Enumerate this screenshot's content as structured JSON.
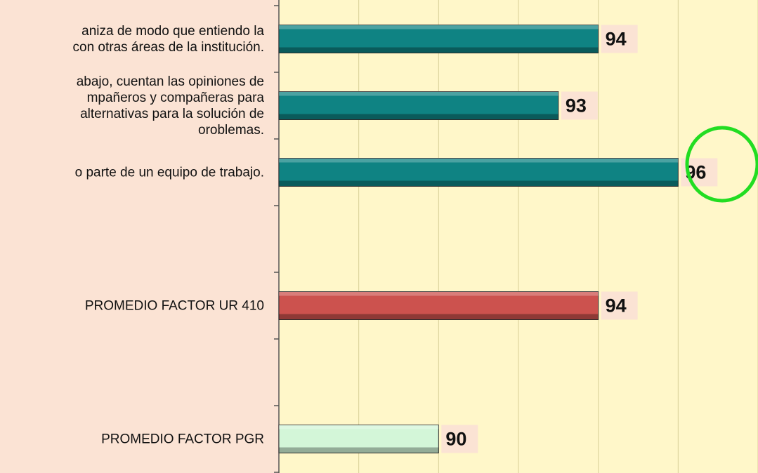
{
  "chart_data": {
    "type": "bar",
    "orientation": "horizontal",
    "categories": [
      "aniza de modo que entiendo la\ncon otras áreas de la institución.",
      "abajo, cuentan las opiniones de\nmpañeros y compañeras para\nalternativas para la solución de\noroblemas.",
      "o parte de un equipo de trabajo.",
      null,
      "PROMEDIO FACTOR UR 410",
      null,
      "PROMEDIO FACTOR PGR"
    ],
    "values": [
      94,
      93,
      96,
      null,
      94,
      null,
      90
    ],
    "colors": [
      "#0f8383",
      "#0f8383",
      "#0f8383",
      null,
      "#cc524e",
      null,
      "#d3f6d8"
    ],
    "xlim": [
      86,
      98
    ],
    "xticks": [
      86,
      88,
      90,
      92,
      94,
      96,
      98
    ],
    "grid": true
  }
}
